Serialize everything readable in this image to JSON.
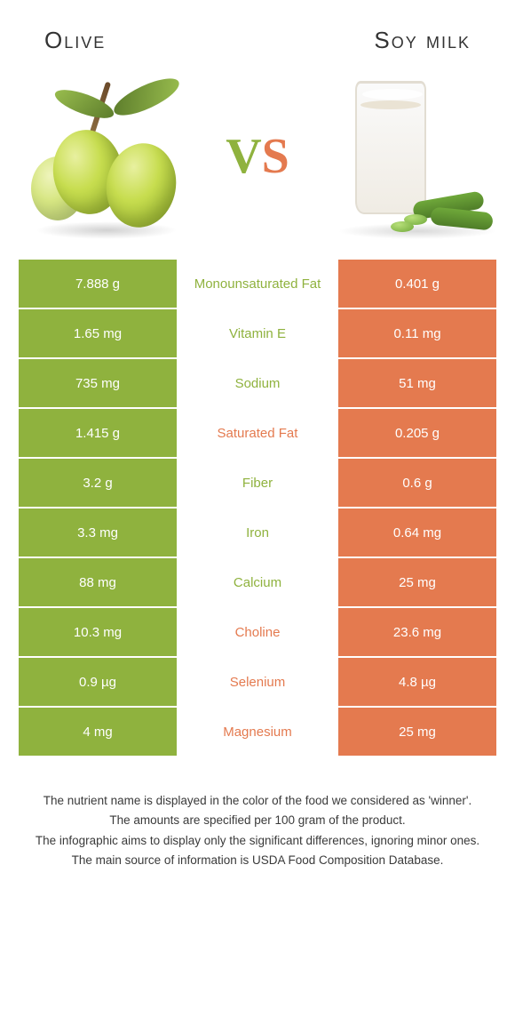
{
  "colors": {
    "left": "#8fb23e",
    "right": "#e47a4f",
    "mid_bg": "#ffffff",
    "row_border": "#ffffff"
  },
  "header": {
    "left_title": "Olive",
    "right_title": "Soy milk"
  },
  "vs": {
    "v": "V",
    "s": "S"
  },
  "rows": [
    {
      "left": "7.888 g",
      "label": "Monounsaturated Fat",
      "right": "0.401 g",
      "winner": "left"
    },
    {
      "left": "1.65 mg",
      "label": "Vitamin E",
      "right": "0.11 mg",
      "winner": "left"
    },
    {
      "left": "735 mg",
      "label": "Sodium",
      "right": "51 mg",
      "winner": "left"
    },
    {
      "left": "1.415 g",
      "label": "Saturated Fat",
      "right": "0.205 g",
      "winner": "right"
    },
    {
      "left": "3.2 g",
      "label": "Fiber",
      "right": "0.6 g",
      "winner": "left"
    },
    {
      "left": "3.3 mg",
      "label": "Iron",
      "right": "0.64 mg",
      "winner": "left"
    },
    {
      "left": "88 mg",
      "label": "Calcium",
      "right": "25 mg",
      "winner": "left"
    },
    {
      "left": "10.3 mg",
      "label": "Choline",
      "right": "23.6 mg",
      "winner": "right"
    },
    {
      "left": "0.9 µg",
      "label": "Selenium",
      "right": "4.8 µg",
      "winner": "right"
    },
    {
      "left": "4 mg",
      "label": "Magnesium",
      "right": "25 mg",
      "winner": "right"
    }
  ],
  "footnotes": [
    "The nutrient name is displayed in the color of the food we considered as 'winner'.",
    "The amounts are specified per 100 gram of the product.",
    "The infographic aims to display only the significant differences, ignoring minor ones.",
    "The main source of information is USDA Food Composition Database."
  ]
}
